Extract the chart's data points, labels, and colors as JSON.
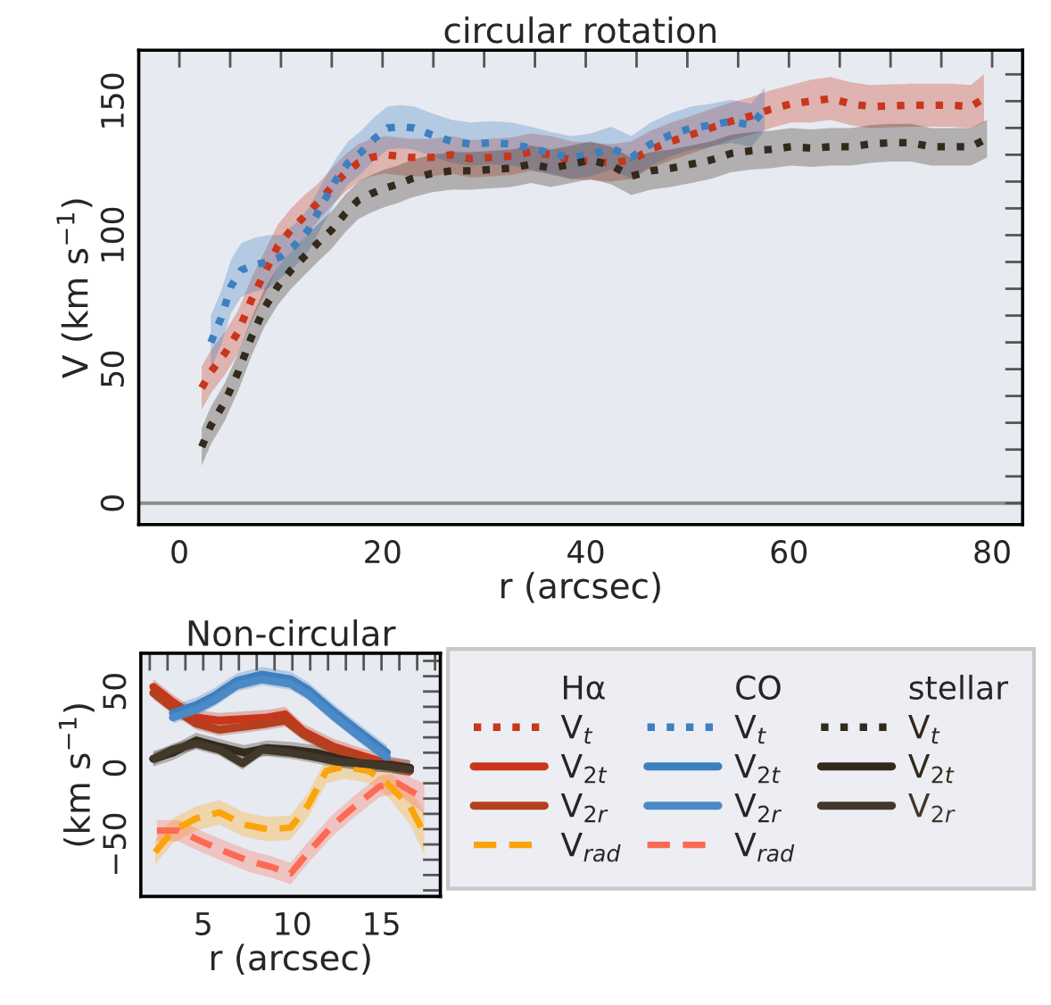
{
  "chart_data": [
    {
      "type": "line",
      "title": "circular rotation",
      "xlabel": "r (arcsec)",
      "ylabel": "V (km s$^{−1}$)",
      "xlim": [
        -4,
        83
      ],
      "ylim": [
        -8,
        169
      ],
      "xticks": [
        0,
        {
          "value": 5,
          "label": null
        },
        {
          "value": 10,
          "label": null
        },
        {
          "value": 15,
          "label": null
        },
        20,
        {
          "value": 25,
          "label": null
        },
        {
          "value": 30,
          "label": null
        },
        {
          "value": 35,
          "label": null
        },
        40,
        {
          "value": 45,
          "label": null
        },
        {
          "value": 50,
          "label": null
        },
        {
          "value": 55,
          "label": null
        },
        60,
        {
          "value": 65,
          "label": null
        },
        {
          "value": 70,
          "label": null
        },
        {
          "value": 75,
          "label": null
        },
        80
      ],
      "yticks": [
        0,
        {
          "value": 10,
          "label": null
        },
        {
          "value": 20,
          "label": null
        },
        {
          "value": 30,
          "label": null
        },
        {
          "value": 40,
          "label": null
        },
        50,
        {
          "value": 60,
          "label": null
        },
        {
          "value": 70,
          "label": null
        },
        {
          "value": 80,
          "label": null
        },
        {
          "value": 90,
          "label": null
        },
        100,
        {
          "value": 110,
          "label": null
        },
        {
          "value": 120,
          "label": null
        },
        {
          "value": 130,
          "label": null
        },
        {
          "value": 140,
          "label": null
        },
        150,
        {
          "value": 160,
          "label": null
        }
      ],
      "ref_lines": [
        {
          "axis": "y",
          "value": 0,
          "color": "#8c8c8c"
        }
      ],
      "grid": false,
      "series": [
        {
          "name": "V$_{t}$",
          "color": "#c8361b",
          "line_style": "dotted",
          "x": [
            2.2,
            3.1,
            4.5,
            5.8,
            7.1,
            8.4,
            9.7,
            11,
            12.3,
            13.6,
            15,
            16.3,
            17.6,
            18.9,
            20.2,
            22.8,
            24.8,
            26.8,
            28.7,
            32.7,
            34.6,
            36.6,
            38.6,
            42.5,
            44.5,
            46.4,
            48.4,
            50.4,
            52.3,
            54.3,
            56.3,
            58.2,
            60.2,
            62.2,
            64.1,
            66.1,
            68,
            72,
            75.9,
            77.9,
            79.2
          ],
          "values": [
            43,
            49,
            56,
            64,
            76,
            86,
            96,
            102,
            107,
            112,
            118,
            123,
            127,
            129,
            130,
            129,
            129,
            130,
            128.5,
            129.5,
            131,
            130,
            128,
            127,
            128,
            132,
            135,
            137.5,
            140,
            142.5,
            144.5,
            147,
            149,
            150,
            151,
            149,
            148,
            148.5,
            148.5,
            148,
            151
          ],
          "lower": [
            35,
            41,
            48,
            56,
            68,
            78,
            88,
            94,
            99,
            105,
            111,
            116,
            120,
            122,
            123,
            122,
            122,
            123,
            121.5,
            122.5,
            124,
            123,
            121,
            120,
            121,
            125,
            128,
            130.5,
            133,
            135.5,
            137.5,
            140,
            142,
            142,
            143,
            141,
            140,
            140.5,
            140.5,
            140,
            142
          ],
          "upper": [
            51,
            57,
            64,
            72,
            84,
            94,
            104,
            110,
            115,
            119,
            125,
            130,
            134,
            136,
            137,
            136,
            136,
            137,
            135.5,
            136.5,
            138,
            137,
            135,
            134,
            135,
            139,
            142,
            144.5,
            147,
            149.5,
            151.5,
            154,
            156,
            158,
            159,
            157,
            156,
            156.5,
            156.5,
            156,
            160
          ]
        },
        {
          "name": "V$_{t}$",
          "color": "#3d7fbf",
          "line_style": "dotted",
          "x": [
            3.1,
            4.1,
            5.1,
            6.1,
            7.4,
            8.7,
            10,
            11.3,
            12.7,
            14,
            15.3,
            16.6,
            17.9,
            19.2,
            20.5,
            21.8,
            23.1,
            24.8,
            26.8,
            28.7,
            30.7,
            32.7,
            34.6,
            36.6,
            38.6,
            40.5,
            42.5,
            44.5,
            46.4,
            48.4,
            50.4,
            52.3,
            54.3,
            56.3,
            57.6
          ],
          "values": [
            60,
            69,
            81,
            87,
            89,
            90,
            92,
            96,
            102,
            111,
            120,
            127,
            131,
            136,
            140,
            140.5,
            140,
            137.5,
            135,
            134,
            134.5,
            134,
            132.5,
            130.5,
            129,
            130,
            132.5,
            129,
            134,
            137.5,
            140,
            141,
            142.5,
            141,
            147
          ],
          "lower": [
            50,
            59,
            71,
            77,
            79,
            80,
            84,
            88,
            94,
            103,
            112,
            119,
            123,
            128,
            132,
            132.5,
            132,
            129.5,
            127,
            126,
            126.5,
            126,
            124.5,
            122.5,
            121,
            122,
            124.5,
            121,
            126,
            129.5,
            132,
            133,
            134.5,
            133,
            139
          ],
          "upper": [
            70,
            79,
            91,
            97,
            99,
            100,
            100,
            104,
            110,
            119,
            128,
            135,
            139,
            144,
            148,
            148.5,
            148,
            145.5,
            143,
            142,
            142.5,
            142,
            140.5,
            138.5,
            137,
            138,
            140.5,
            137,
            142,
            145.5,
            148,
            149,
            150.5,
            149,
            155
          ]
        },
        {
          "name": "V$_{t}$",
          "color": "#33291c",
          "line_style": "dotted",
          "x": [
            2.2,
            3.1,
            4.5,
            5.8,
            7.1,
            8.4,
            9.7,
            11,
            12.3,
            13.6,
            15,
            16.3,
            17.6,
            18.9,
            20.2,
            21.5,
            22.8,
            24.8,
            26.8,
            28.7,
            30.7,
            32.7,
            34.6,
            36.6,
            38.6,
            40.5,
            42.5,
            44.5,
            46.4,
            48.4,
            50.4,
            52.3,
            54.3,
            56.3,
            58.2,
            60.2,
            62.2,
            64.1,
            66.1,
            68,
            70,
            72,
            74,
            77.9,
            79.5
          ],
          "values": [
            21,
            29,
            38,
            49,
            62,
            73,
            81,
            87,
            92,
            97,
            102,
            108,
            113,
            115.5,
            117.5,
            119,
            121,
            123,
            124,
            124,
            124.5,
            125,
            126.5,
            125,
            126.5,
            128,
            126,
            122,
            124,
            125,
            126.5,
            128,
            130.5,
            131.5,
            132,
            133,
            132.5,
            133,
            133,
            134,
            134.5,
            134.5,
            133,
            133,
            136
          ],
          "lower": [
            14,
            22,
            31,
            42,
            55,
            66,
            74,
            80,
            85,
            90,
            95,
            101,
            106,
            108.5,
            110.5,
            112,
            114,
            116,
            117,
            117,
            117.5,
            118,
            119.5,
            118,
            119.5,
            121,
            119,
            115,
            117,
            118,
            119.5,
            121,
            123.5,
            124.5,
            125,
            126,
            125.5,
            126,
            126,
            127,
            127.5,
            127.5,
            126,
            126,
            129
          ],
          "upper": [
            28,
            36,
            45,
            56,
            69,
            80,
            88,
            94,
            99,
            104,
            109,
            115,
            120,
            122.5,
            124.5,
            126,
            128,
            130,
            131,
            131,
            131.5,
            132,
            133.5,
            132,
            133.5,
            135,
            133,
            129,
            131,
            132,
            133.5,
            135,
            137.5,
            138.5,
            139,
            140,
            139.5,
            140,
            140,
            141,
            141.5,
            141.5,
            140,
            140,
            143
          ]
        }
      ]
    },
    {
      "type": "line",
      "title": "Non-circular",
      "xlabel": "r (arcsec)",
      "ylabel": "(km s$^{−1}$)",
      "xlim": [
        1.5,
        18.3
      ],
      "ylim": [
        -84,
        75
      ],
      "xticks": [
        {
          "value": 2,
          "label": null
        },
        {
          "value": 3,
          "label": null
        },
        {
          "value": 4,
          "label": null
        },
        5,
        {
          "value": 6,
          "label": null
        },
        {
          "value": 7,
          "label": null
        },
        {
          "value": 8,
          "label": null
        },
        {
          "value": 9,
          "label": null
        },
        10,
        {
          "value": 11,
          "label": null
        },
        {
          "value": 12,
          "label": null
        },
        {
          "value": 13,
          "label": null
        },
        {
          "value": 14,
          "label": null
        },
        15,
        {
          "value": 16,
          "label": null
        },
        {
          "value": 17,
          "label": null
        },
        {
          "value": 18,
          "label": null
        }
      ],
      "yticks": [
        {
          "value": -80,
          "label": null
        },
        {
          "value": -70,
          "label": null
        },
        {
          "value": -60,
          "label": null
        },
        {
          "value": -50,
          "label": "−50"
        },
        {
          "value": -40,
          "label": null
        },
        {
          "value": -30,
          "label": null
        },
        {
          "value": -20,
          "label": null
        },
        {
          "value": -10,
          "label": null
        },
        0,
        {
          "value": 10,
          "label": null
        },
        {
          "value": 20,
          "label": null
        },
        {
          "value": 30,
          "label": null
        },
        {
          "value": 40,
          "label": null
        },
        50,
        {
          "value": 60,
          "label": null
        },
        {
          "value": 70,
          "label": null
        }
      ],
      "grid": false,
      "legend": "right",
      "annotations": [
        "Hα",
        "CO",
        "stellar"
      ],
      "series": [
        {
          "name": "V$_{2t}$",
          "color": "#c8361b",
          "line_style": "solid",
          "x": [
            2.2,
            3.3,
            4.6,
            5.9,
            7.3,
            8.6,
            9.6,
            10.6,
            12.3,
            13.9,
            15.3,
            16.6
          ],
          "values": [
            53,
            43,
            33,
            31,
            32,
            33,
            35,
            24,
            14,
            8,
            3,
            0
          ],
          "lower": [
            48,
            38,
            28,
            26,
            27,
            28,
            30,
            19,
            9,
            3,
            -2,
            -5
          ],
          "upper": [
            58,
            48,
            38,
            36,
            37,
            38,
            40,
            29,
            19,
            13,
            8,
            5
          ]
        },
        {
          "name": "V$_{2r}$",
          "color": "#b4401f",
          "line_style": "solid",
          "x": [
            2.2,
            3.3,
            4.6,
            5.9,
            7.3,
            8.6,
            9.6,
            10.6,
            12.3,
            13.9,
            15.3,
            16.6
          ],
          "values": [
            49,
            39,
            29,
            25,
            27,
            29,
            31,
            22,
            12,
            6,
            2,
            -2
          ],
          "lower": [
            45,
            35,
            25,
            21,
            23,
            25,
            27,
            18,
            8,
            2,
            -2,
            -6
          ],
          "upper": [
            53,
            43,
            33,
            29,
            31,
            33,
            35,
            26,
            16,
            10,
            6,
            2
          ]
        },
        {
          "name": "V$_{rad}$",
          "color": "#fba40b",
          "line_style": "dashed",
          "x": [
            2.3,
            3.3,
            4.6,
            5.9,
            7.3,
            8.6,
            9.9,
            10.9,
            11.9,
            12.9,
            14.3,
            15.3,
            16.6,
            17.4
          ],
          "values": [
            -55,
            -41,
            -33,
            -29,
            -37,
            -40,
            -39,
            -24,
            -2,
            1,
            -2,
            -10,
            -25,
            -43
          ],
          "lower": [
            -63,
            -49,
            -41,
            -37,
            -45,
            -48,
            -47,
            -32,
            -10,
            -7,
            -10,
            -18,
            -37,
            -57
          ],
          "upper": [
            -47,
            -33,
            -25,
            -21,
            -29,
            -32,
            -31,
            -16,
            6,
            9,
            6,
            -2,
            -13,
            -29
          ]
        },
        {
          "name": "V$_{2t}$",
          "color": "#3d7fbf",
          "line_style": "solid",
          "x": [
            3.3,
            4.6,
            5.6,
            6.9,
            8.3,
            9.9,
            10.9,
            12.3,
            13.6,
            15.3
          ],
          "values": [
            36,
            41,
            47,
            57,
            61,
            58,
            51,
            37,
            25,
            10
          ],
          "lower": [
            31,
            36,
            42,
            52,
            56,
            53,
            46,
            32,
            20,
            5
          ],
          "upper": [
            41,
            46,
            52,
            62,
            66,
            63,
            56,
            42,
            30,
            15
          ]
        },
        {
          "name": "V$_{2r}$",
          "color": "#4b8ac6",
          "line_style": "solid",
          "x": [
            3.3,
            4.6,
            5.6,
            6.9,
            8.3,
            9.9,
            10.9,
            12.3,
            13.6,
            15.3
          ],
          "values": [
            33,
            38,
            44,
            54,
            58,
            55,
            48,
            34,
            22,
            7
          ],
          "lower": [
            29,
            34,
            40,
            50,
            54,
            51,
            44,
            30,
            18,
            3
          ],
          "upper": [
            37,
            42,
            48,
            58,
            62,
            59,
            52,
            38,
            26,
            11
          ]
        },
        {
          "name": "V$_{rad}$",
          "color": "#fd6a54",
          "line_style": "dashed",
          "x": [
            2.4,
            3.6,
            4.9,
            6.3,
            7.6,
            8.9,
            9.9,
            10.9,
            12.3,
            13.6,
            14.9,
            15.9,
            17.4
          ],
          "values": [
            -41,
            -41,
            -48,
            -55,
            -61,
            -65,
            -69,
            -55,
            -37,
            -24,
            -12,
            -10,
            -20
          ],
          "lower": [
            -48,
            -48,
            -55,
            -62,
            -68,
            -72,
            -76,
            -62,
            -44,
            -31,
            -19,
            -17,
            -30
          ],
          "upper": [
            -34,
            -34,
            -41,
            -48,
            -54,
            -58,
            -62,
            -48,
            -30,
            -17,
            -5,
            -3,
            -10
          ]
        },
        {
          "name": "V$_{2t}$",
          "color": "#33291c",
          "line_style": "solid",
          "x": [
            2.2,
            3.3,
            4.6,
            5.9,
            7.3,
            8.6,
            9.9,
            11.3,
            12.6,
            13.9,
            15.3,
            16.6
          ],
          "values": [
            6,
            10,
            18,
            14,
            10,
            13,
            12,
            10,
            6,
            3,
            2,
            0
          ],
          "lower": [
            1,
            5,
            13,
            9,
            5,
            8,
            7,
            5,
            1,
            -2,
            -3,
            -5
          ],
          "upper": [
            11,
            15,
            23,
            19,
            15,
            18,
            17,
            15,
            11,
            8,
            7,
            5
          ]
        },
        {
          "name": "V$_{2r}$",
          "color": "#42382a",
          "line_style": "solid",
          "x": [
            2.2,
            3.3,
            4.6,
            5.9,
            7.2,
            8.3,
            9.9,
            11.3,
            12.6,
            13.9,
            15.3,
            16.6
          ],
          "values": [
            6,
            12,
            16,
            12,
            3,
            12,
            10,
            7,
            4,
            3,
            1,
            -1
          ],
          "lower": [
            2,
            8,
            12,
            8,
            -1,
            8,
            6,
            3,
            0,
            -1,
            -3,
            -5
          ],
          "upper": [
            10,
            16,
            20,
            16,
            7,
            16,
            14,
            11,
            8,
            7,
            5,
            3
          ]
        }
      ]
    }
  ]
}
